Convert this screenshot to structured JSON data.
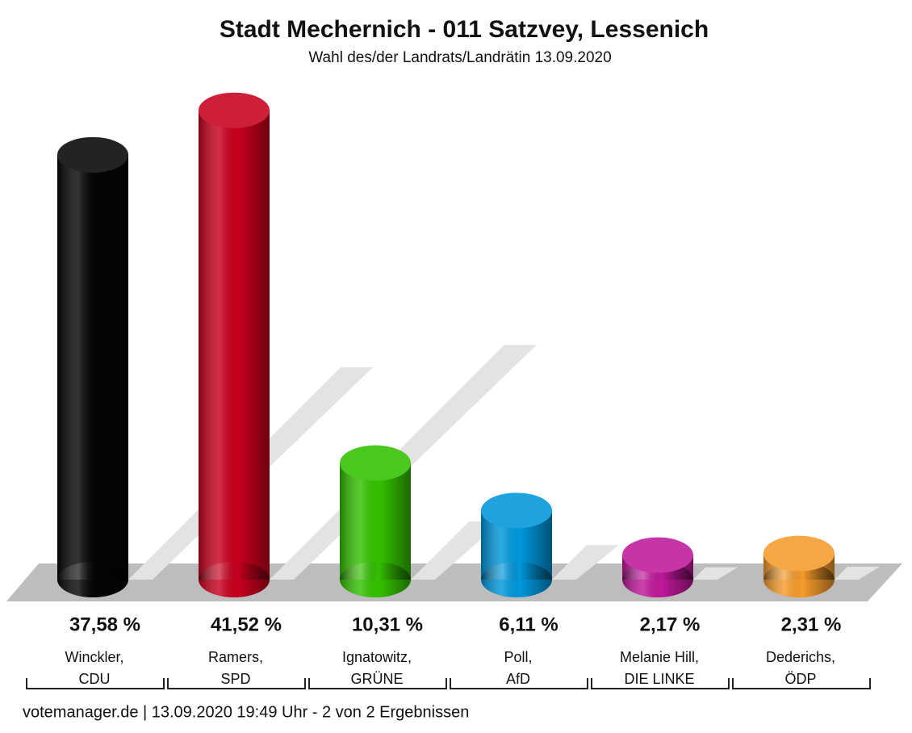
{
  "chart_data": {
    "type": "bar",
    "title": "Stadt Mechernich - 011 Satzvey, Lessenich",
    "subtitle": "Wahl des/der Landrats/Landrätin 13.09.2020",
    "categories": [
      [
        "Winckler,",
        "CDU"
      ],
      [
        "Ramers,",
        "SPD"
      ],
      [
        "Ignatowitz,",
        "GRÜNE"
      ],
      [
        "Poll,",
        "AfD"
      ],
      [
        "Melanie Hill,",
        "DIE LINKE"
      ],
      [
        "Dederichs,",
        "ÖDP"
      ]
    ],
    "values": [
      37.58,
      41.52,
      10.31,
      6.11,
      2.17,
      2.31
    ],
    "value_labels": [
      "37,58 %",
      "41,52 %",
      "10,31 %",
      "6,11 %",
      "2,17 %",
      "2,31 %"
    ],
    "colors": [
      "#050505",
      "#c8001e",
      "#33c100",
      "#0097db",
      "#c0189a",
      "#f59b2c"
    ],
    "footer": "votemanager.de | 13.09.2020 19:49 Uhr - 2 von 2 Ergebnissen"
  }
}
